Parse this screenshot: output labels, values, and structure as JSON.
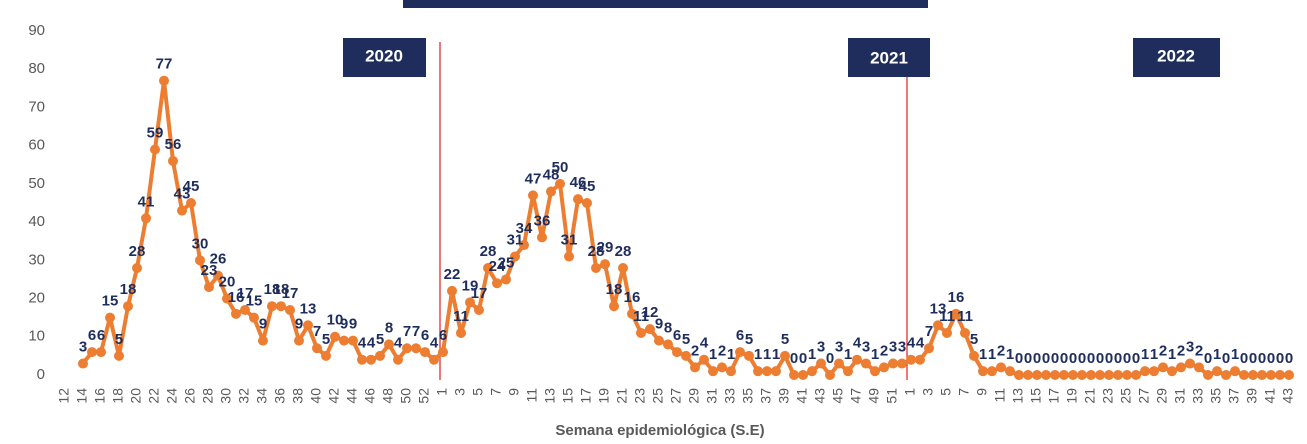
{
  "chart_data": {
    "type": "line",
    "x_label": "Semana epidemiológica (S.E)",
    "annotations": [
      "2020",
      "2021",
      "2022"
    ],
    "categories": [
      "12",
      null,
      "14",
      null,
      "16",
      null,
      "18",
      null,
      "20",
      null,
      "22",
      null,
      "24",
      null,
      "26",
      null,
      "28",
      null,
      "30",
      null,
      "32",
      null,
      "34",
      null,
      "36",
      null,
      "38",
      null,
      "40",
      null,
      "42",
      null,
      "44",
      null,
      "46",
      null,
      "48",
      null,
      "50",
      null,
      "52",
      null,
      "1",
      null,
      "3",
      null,
      "5",
      null,
      "7",
      null,
      "9",
      null,
      "11",
      null,
      "13",
      null,
      "15",
      null,
      "17",
      null,
      "19",
      null,
      "21",
      null,
      "23",
      null,
      "25",
      null,
      "27",
      null,
      "29",
      null,
      "31",
      null,
      "33",
      null,
      "35",
      null,
      "37",
      null,
      "39",
      null,
      "41",
      null,
      "43",
      null,
      "45",
      null,
      "47",
      null,
      "49",
      null,
      "51",
      null,
      "1",
      null,
      "3",
      null,
      "5",
      null,
      "7",
      null,
      "9",
      null,
      "11",
      null,
      "13",
      null,
      "15",
      null,
      "17",
      null,
      "19",
      null,
      "21",
      null,
      "23",
      null,
      "25",
      null,
      "27",
      null,
      "29",
      null,
      "31",
      null,
      "33",
      null,
      "35",
      null,
      "37",
      null,
      "39",
      null,
      "41",
      null,
      "43"
    ],
    "series": [
      {
        "color": "#ed7d31",
        "values": [
          null,
          null,
          3,
          6,
          6,
          15,
          5,
          18,
          28,
          41,
          59,
          77,
          56,
          43,
          45,
          30,
          23,
          26,
          20,
          16,
          17,
          15,
          9,
          18,
          18,
          17,
          9,
          13,
          7,
          5,
          10,
          9,
          9,
          4,
          4,
          5,
          8,
          4,
          7,
          7,
          6,
          4,
          6,
          22,
          11,
          19,
          17,
          28,
          24,
          25,
          31,
          34,
          47,
          36,
          48,
          50,
          31,
          46,
          45,
          28,
          29,
          18,
          28,
          16,
          11,
          12,
          9,
          8,
          6,
          5,
          2,
          4,
          1,
          2,
          1,
          6,
          5,
          1,
          1,
          1,
          5,
          0,
          0,
          1,
          3,
          0,
          3,
          1,
          4,
          3,
          1,
          2,
          3,
          3,
          4,
          4,
          7,
          13,
          11,
          16,
          11,
          5,
          1,
          1,
          2,
          1,
          0,
          0,
          0,
          0,
          0,
          0,
          0,
          0,
          0,
          0,
          0,
          0,
          0,
          0,
          1,
          1,
          2,
          1,
          2,
          3,
          2,
          0,
          1,
          0,
          1,
          0,
          0,
          0,
          0,
          0,
          0
        ]
      }
    ],
    "ylim": [
      0,
      90
    ],
    "yticks": [
      0,
      10,
      20,
      30,
      40,
      50,
      60,
      70,
      80,
      90
    ],
    "grid": false
  }
}
